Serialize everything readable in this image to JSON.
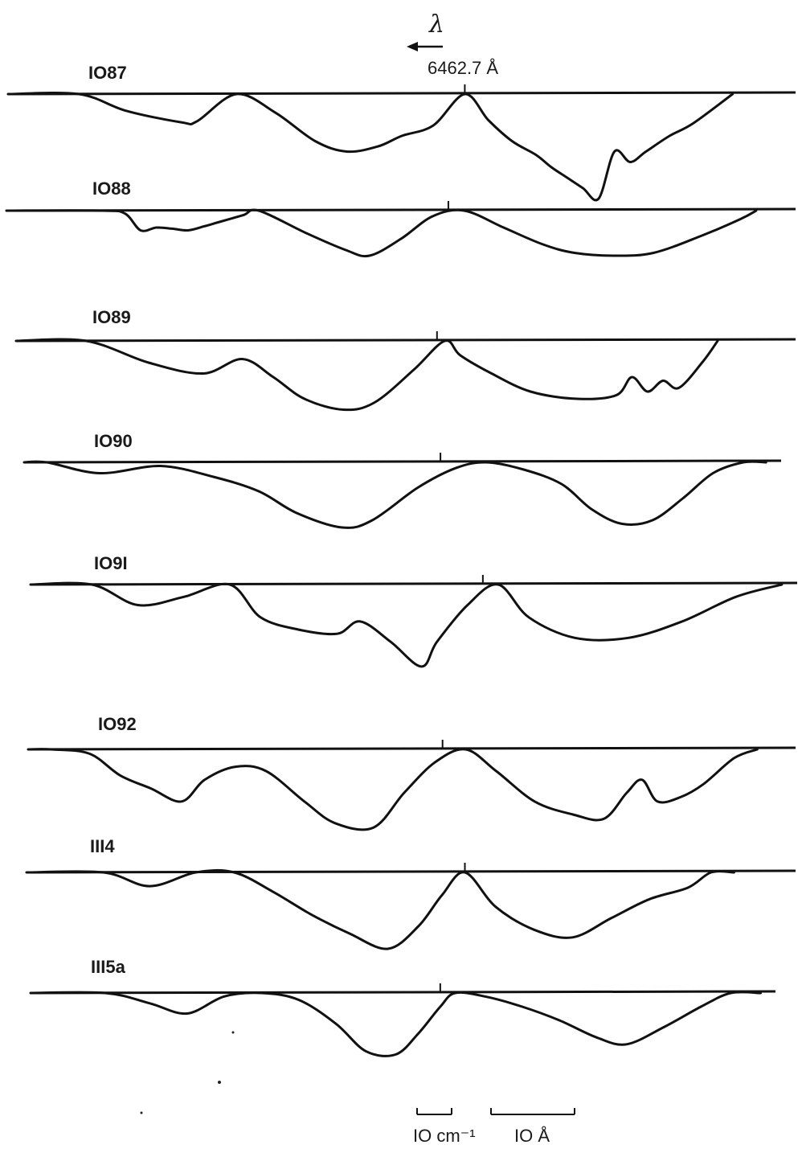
{
  "chart_data": {
    "type": "line",
    "title": "",
    "xlabel": "",
    "ylabel": "",
    "reference_line": "6462.7 Å",
    "wavelength_direction": "λ",
    "scale_bars": [
      "IO cm⁻¹",
      "IO Å"
    ],
    "x_range": [
      0,
      100
    ],
    "y_range": [
      0,
      1
    ],
    "series": [
      {
        "name": "IO87",
        "ref_tick_x": 58,
        "x": [
          0,
          9,
          15,
          22,
          24,
          29,
          34,
          39,
          43,
          47,
          50,
          54,
          58,
          61,
          64,
          67,
          69,
          71,
          73,
          75,
          77,
          79,
          81,
          84,
          87,
          92
        ],
        "y": [
          0,
          0,
          0.16,
          0.27,
          0.26,
          0,
          0.18,
          0.45,
          0.55,
          0.5,
          0.4,
          0.3,
          0,
          0.25,
          0.45,
          0.58,
          0.7,
          0.8,
          0.9,
          1.0,
          0.55,
          0.65,
          0.55,
          0.4,
          0.28,
          0
        ]
      },
      {
        "name": "IO88",
        "ref_tick_x": 56,
        "x": [
          0,
          12,
          15,
          17,
          19,
          21,
          23,
          25,
          27,
          30,
          32,
          38,
          43,
          46,
          50,
          54,
          58,
          63,
          68,
          72,
          77,
          82,
          88,
          93,
          95
        ],
        "y": [
          0,
          0,
          0.05,
          0.35,
          0.3,
          0.32,
          0.35,
          0.28,
          0.2,
          0.08,
          0,
          0.4,
          0.7,
          0.8,
          0.5,
          0.1,
          0,
          0.3,
          0.6,
          0.75,
          0.8,
          0.75,
          0.45,
          0.15,
          0
        ]
      },
      {
        "name": "IO89",
        "ref_tick_x": 54,
        "x": [
          0,
          9,
          17,
          24,
          29,
          33,
          37,
          42,
          46,
          51,
          55,
          57,
          61,
          66,
          72,
          77,
          79,
          81,
          83,
          85,
          88,
          90
        ],
        "y": [
          0,
          0,
          0.3,
          0.45,
          0.25,
          0.5,
          0.8,
          0.95,
          0.85,
          0.4,
          0,
          0.2,
          0.45,
          0.7,
          0.8,
          0.75,
          0.5,
          0.7,
          0.55,
          0.65,
          0.3,
          0
        ]
      },
      {
        "name": "IO90",
        "ref_tick_x": 55,
        "x": [
          0,
          3,
          10,
          18,
          25,
          31,
          36,
          42,
          46,
          52,
          57,
          61,
          66,
          71,
          75,
          79,
          83,
          87,
          91,
          95,
          98
        ],
        "y": [
          0,
          0,
          0.15,
          0.05,
          0.2,
          0.4,
          0.7,
          0.9,
          0.8,
          0.35,
          0.08,
          0,
          0.1,
          0.3,
          0.65,
          0.85,
          0.8,
          0.5,
          0.15,
          0,
          0
        ]
      },
      {
        "name": "IO9I",
        "ref_tick_x": 59,
        "x": [
          0,
          8,
          14,
          20,
          26,
          30,
          35,
          40,
          43,
          47,
          51,
          53,
          57,
          61,
          65,
          71,
          78,
          85,
          92,
          98
        ],
        "y": [
          0,
          0,
          0.25,
          0.15,
          0,
          0.4,
          0.55,
          0.6,
          0.45,
          0.7,
          1.0,
          0.7,
          0.25,
          0,
          0.4,
          0.65,
          0.65,
          0.45,
          0.15,
          0
        ]
      },
      {
        "name": "IO92",
        "ref_tick_x": 54,
        "x": [
          0,
          3,
          8,
          12,
          16,
          20,
          23,
          27,
          31,
          36,
          40,
          45,
          49,
          53,
          57,
          61,
          66,
          71,
          75,
          78,
          80,
          82,
          85,
          88,
          92,
          95
        ],
        "y": [
          0,
          0,
          0.05,
          0.3,
          0.45,
          0.6,
          0.35,
          0.2,
          0.25,
          0.6,
          0.85,
          0.9,
          0.5,
          0.15,
          0,
          0.25,
          0.6,
          0.75,
          0.8,
          0.5,
          0.35,
          0.6,
          0.55,
          0.4,
          0.1,
          0
        ]
      },
      {
        "name": "III4",
        "ref_tick_x": 57,
        "x": [
          0,
          10,
          16,
          22,
          27,
          32,
          37,
          42,
          47,
          51,
          54,
          57,
          61,
          66,
          71,
          76,
          81,
          86,
          89,
          92
        ],
        "y": [
          0,
          0,
          0.18,
          0,
          0,
          0.25,
          0.55,
          0.8,
          1.0,
          0.7,
          0.3,
          0,
          0.45,
          0.75,
          0.85,
          0.6,
          0.35,
          0.2,
          0,
          0
        ]
      },
      {
        "name": "III5a",
        "ref_tick_x": 55,
        "x": [
          0,
          10,
          16,
          21,
          26,
          31,
          36,
          41,
          45,
          49,
          52,
          55,
          57,
          61,
          66,
          71,
          76,
          80,
          85,
          90,
          94,
          98
        ],
        "y": [
          0,
          0,
          0.15,
          0.3,
          0.05,
          0,
          0.1,
          0.45,
          0.85,
          0.9,
          0.6,
          0.2,
          0,
          0.05,
          0.2,
          0.4,
          0.65,
          0.75,
          0.5,
          0.2,
          0,
          0
        ]
      }
    ]
  }
}
